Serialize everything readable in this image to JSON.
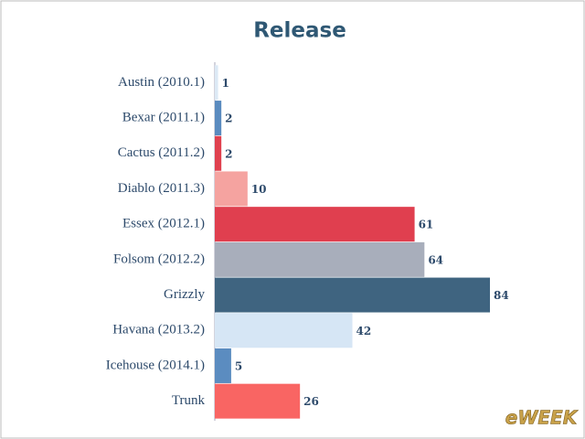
{
  "chart_data": {
    "type": "hbar",
    "title": "Release",
    "categories": [
      "Austin (2010.1)",
      "Bexar (2011.1)",
      "Cactus (2011.2)",
      "Diablo (2011.3)",
      "Essex (2012.1)",
      "Folsom (2012.2)",
      "Grizzly",
      "Havana (2013.2)",
      "Icehouse (2014.1)",
      "Trunk"
    ],
    "values": [
      1,
      2,
      2,
      10,
      61,
      64,
      84,
      42,
      5,
      26
    ],
    "colors": [
      "#dce9f5",
      "#5a8bbf",
      "#e0414f",
      "#f5a3a0",
      "#e03f4f",
      "#a8aebb",
      "#3f6480",
      "#d6e6f5",
      "#5b8cc0",
      "#f96563"
    ]
  },
  "watermark": "eWEEK"
}
